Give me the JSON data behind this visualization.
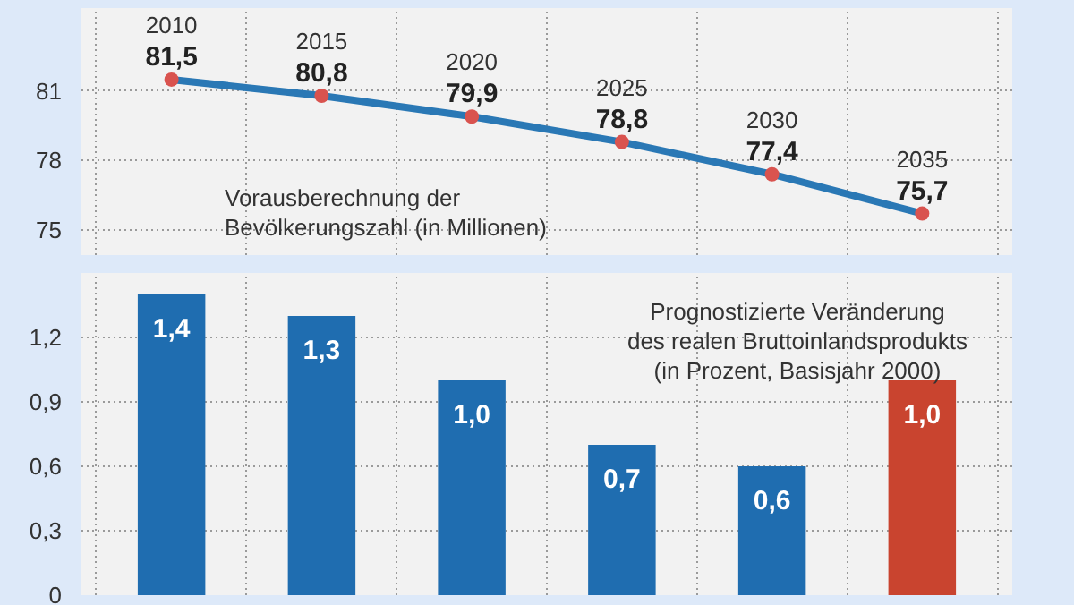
{
  "chart_data": [
    {
      "type": "line",
      "categories": [
        "2010",
        "2015",
        "2020",
        "2025",
        "2030",
        "2035"
      ],
      "series": [
        {
          "color": "#2a78b5",
          "values": [
            81.5,
            80.8,
            79.9,
            78.8,
            77.4,
            75.7
          ],
          "value_labels": [
            "81,5",
            "80,8",
            "79,9",
            "78,8",
            "77,4",
            "75,7"
          ]
        }
      ],
      "marker": "circle",
      "ylim": [
        73.9,
        84.6
      ],
      "yticks": [
        75,
        78,
        81
      ],
      "grid": true,
      "tick_labels": "y",
      "annotations": [
        "Vorausberechnung der\nBevölkerungszahl (in Millionen)"
      ]
    },
    {
      "type": "bar",
      "categories": [
        null,
        null,
        null,
        null,
        null,
        null
      ],
      "values": [
        1.4,
        1.3,
        1.0,
        0.7,
        0.6,
        1.0
      ],
      "colors": [
        "#1f6db0",
        "#1f6db0",
        "#1f6db0",
        "#1f6db0",
        "#1f6db0",
        "#c9442f"
      ],
      "value_labels": [
        "1,4",
        "1,3",
        "1,0",
        "0,7",
        "0,6",
        "1,0"
      ],
      "ylim": [
        0,
        1.5
      ],
      "yticks": [
        {
          "value": 0,
          "label": "0"
        },
        {
          "value": 0.3,
          "label": "0,3"
        },
        {
          "value": 0.6,
          "label": "0,6"
        },
        {
          "value": 0.9,
          "label": "0,9"
        },
        {
          "value": 1.2,
          "label": "1,2"
        }
      ],
      "grid": true,
      "tick_labels": "y",
      "annotations": [
        "Prognostizierte Veränderung\ndes realen Bruttoinlandsprodukts\n(in Prozent, Basisjahr 2000)"
      ]
    }
  ]
}
